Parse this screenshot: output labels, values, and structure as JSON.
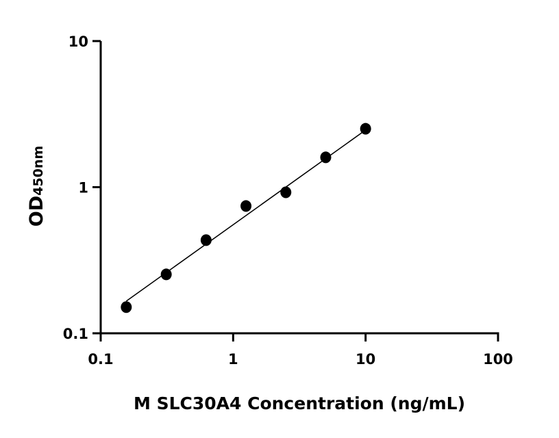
{
  "chart_data": {
    "type": "scatter",
    "title": "",
    "xlabel": "M SLC30A4 Concentration (ng/mL)",
    "ylabel": "OD",
    "ylabel_subscript": "450nm",
    "x_scale": "log",
    "y_scale": "log",
    "xlim": [
      0.1,
      100
    ],
    "ylim": [
      0.1,
      10
    ],
    "x_ticks": [
      0.1,
      1,
      10,
      100
    ],
    "x_tick_labels": [
      "0.1",
      "1",
      "10",
      "100"
    ],
    "y_ticks": [
      0.1,
      1,
      10
    ],
    "y_tick_labels": [
      "0.1",
      "1",
      "10"
    ],
    "grid": false,
    "marker_color": "#000000",
    "points": [
      {
        "x": 0.156,
        "y": 0.151
      },
      {
        "x": 0.3125,
        "y": 0.253
      },
      {
        "x": 0.625,
        "y": 0.434
      },
      {
        "x": 1.25,
        "y": 0.743
      },
      {
        "x": 2.5,
        "y": 0.922
      },
      {
        "x": 5,
        "y": 1.6
      },
      {
        "x": 10,
        "y": 2.51
      }
    ],
    "fit_line": {
      "x": [
        0.156,
        10
      ],
      "y": [
        0.166,
        2.46
      ]
    }
  }
}
